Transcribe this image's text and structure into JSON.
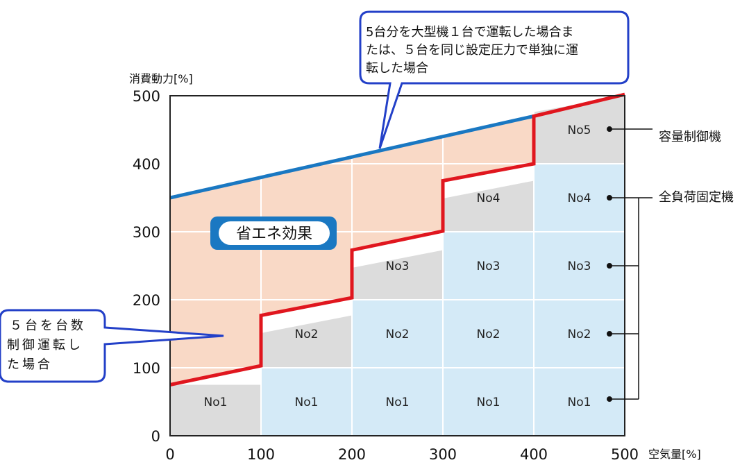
{
  "chart_data": {
    "type": "area",
    "ylabel": "消費動力[%]",
    "xlabel": "空気量[%]",
    "xlim": [
      0,
      500
    ],
    "ylim": [
      0,
      500
    ],
    "x_ticks": [
      0,
      100,
      200,
      300,
      400,
      500
    ],
    "y_ticks": [
      0,
      100,
      200,
      300,
      400,
      500
    ],
    "grid": true,
    "series": [
      {
        "name": "5台分を大型機１台で運転した場合または、５台を同じ設定圧力で単独に運転した場合",
        "color": "#1a78c2",
        "points": [
          [
            0,
            350
          ],
          [
            400,
            470
          ]
        ]
      },
      {
        "name": "５台を台数制御運転した場合",
        "color": "#e0161e",
        "points": [
          [
            0,
            75
          ],
          [
            100,
            103
          ],
          [
            100,
            177
          ],
          [
            200,
            203
          ],
          [
            200,
            273
          ],
          [
            300,
            301
          ],
          [
            300,
            375
          ],
          [
            400,
            400
          ],
          [
            400,
            470
          ],
          [
            500,
            502
          ]
        ]
      }
    ],
    "stack_blocks": [
      {
        "x0": 0,
        "x1": 100,
        "y0": 0,
        "y1": 75,
        "label": "No1",
        "kind": "capacity"
      },
      {
        "x0": 100,
        "x1": 200,
        "y0": 0,
        "y1": 100,
        "label": "No1",
        "kind": "fixed"
      },
      {
        "x0": 100,
        "x1": 200,
        "y0": 100,
        "y1": 177,
        "label": "No2",
        "kind": "capacity"
      },
      {
        "x0": 200,
        "x1": 300,
        "y0": 0,
        "y1": 100,
        "label": "No1",
        "kind": "fixed"
      },
      {
        "x0": 200,
        "x1": 300,
        "y0": 100,
        "y1": 200,
        "label": "No2",
        "kind": "fixed"
      },
      {
        "x0": 200,
        "x1": 300,
        "y0": 200,
        "y1": 273,
        "label": "No3",
        "kind": "capacity"
      },
      {
        "x0": 300,
        "x1": 400,
        "y0": 0,
        "y1": 100,
        "label": "No1",
        "kind": "fixed"
      },
      {
        "x0": 300,
        "x1": 400,
        "y0": 100,
        "y1": 200,
        "label": "No2",
        "kind": "fixed"
      },
      {
        "x0": 300,
        "x1": 400,
        "y0": 200,
        "y1": 300,
        "label": "No3",
        "kind": "fixed"
      },
      {
        "x0": 300,
        "x1": 400,
        "y0": 300,
        "y1": 375,
        "label": "No4",
        "kind": "capacity"
      },
      {
        "x0": 400,
        "x1": 500,
        "y0": 0,
        "y1": 100,
        "label": "No1",
        "kind": "fixed"
      },
      {
        "x0": 400,
        "x1": 500,
        "y0": 100,
        "y1": 200,
        "label": "No2",
        "kind": "fixed"
      },
      {
        "x0": 400,
        "x1": 500,
        "y0": 200,
        "y1": 300,
        "label": "No3",
        "kind": "fixed"
      },
      {
        "x0": 400,
        "x1": 500,
        "y0": 300,
        "y1": 400,
        "label": "No4",
        "kind": "fixed"
      },
      {
        "x0": 400,
        "x1": 500,
        "y0": 400,
        "y1": 502,
        "label": "No5",
        "kind": "capacity"
      }
    ],
    "colors": {
      "savings_fill": "#f9d9c6",
      "capacity_fill": "#dcdcdc",
      "fixed_fill": "#d4eaf7",
      "grid": "#ffffff",
      "callout_border": "#2340c8",
      "badge_bg": "#1a78c2"
    },
    "annotations": {
      "savings_label": "省エネ効果",
      "callout_top_lines": [
        "5台分を大型機１台で運転した場合ま",
        "たは、５台を同じ設定圧力で単独に運",
        "転した場合"
      ],
      "callout_left_lines": [
        "５台を台数",
        "制御運転し",
        "た場合"
      ],
      "legend_capacity": "容量制御機",
      "legend_fixed": "全負荷固定機"
    }
  }
}
